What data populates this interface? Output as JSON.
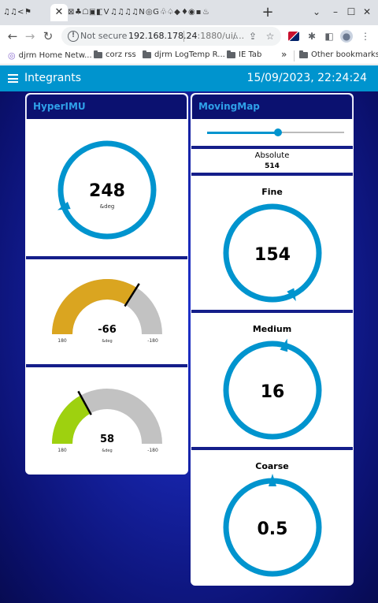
{
  "browser": {
    "tab_icons_left": [
      "♫",
      "♫",
      "<",
      "⚑"
    ],
    "tab_close": "✕",
    "tab_icons_right": [
      "⊠",
      "♣",
      "☖",
      "▣",
      "◧",
      "V",
      "♫",
      "♫",
      "♫",
      "♫",
      "N",
      "◎",
      "G",
      "♧",
      "♤",
      "◆",
      "♦",
      "◉",
      "▪",
      "♨"
    ],
    "new_tab": "+",
    "window_controls": [
      "⌄",
      "–",
      "☐",
      "✕"
    ],
    "nav_back": "←",
    "nav_forward": "→",
    "nav_reload": "↻",
    "security_text": "Not secure",
    "url_host": "192.168.178.24",
    "url_rest": ":1880/ui/...",
    "omnibox_icons": [
      "⌕",
      "⇪",
      "☆"
    ],
    "ext_icons": [
      "✱",
      "◧",
      "⋮"
    ],
    "bookmarks": [
      {
        "label": "djrm Home Netw...",
        "icon": "globe-icon"
      },
      {
        "label": "corz rss",
        "icon": "folder-icon"
      },
      {
        "label": "djrm LogTemp R...",
        "icon": "folder-icon"
      },
      {
        "label": "IE Tab",
        "icon": "folder-icon"
      }
    ],
    "bookmarks_overflow": "»",
    "other_bookmarks": "Other bookmarks"
  },
  "app": {
    "title": "Integrants",
    "datetime": "15/09/2023, 22:24:24",
    "accent_color": "#0094ce"
  },
  "hyperimu": {
    "title": "HyperIMU",
    "compass": {
      "value": "248",
      "unit": "&deg",
      "heading_deg": 248
    },
    "gauge1": {
      "value": "-66",
      "unit": "&deg",
      "min_label": "180",
      "max_label": "-180",
      "fill_fraction": 0.68,
      "color": "#daa520"
    },
    "gauge2": {
      "value": "58",
      "unit": "&deg",
      "min_label": "180",
      "max_label": "-180",
      "fill_fraction": 0.34,
      "color": "#9ed10f"
    }
  },
  "movingmap": {
    "title": "MovingMap",
    "slider_fraction": 0.52,
    "absolute_label": "Absolute",
    "absolute_value": "514",
    "dials": [
      {
        "label": "Fine",
        "value": "154",
        "heading_deg": 154
      },
      {
        "label": "Medium",
        "value": "16",
        "heading_deg": 16
      },
      {
        "label": "Coarse",
        "value": "0.5",
        "heading_deg": 0
      }
    ]
  }
}
